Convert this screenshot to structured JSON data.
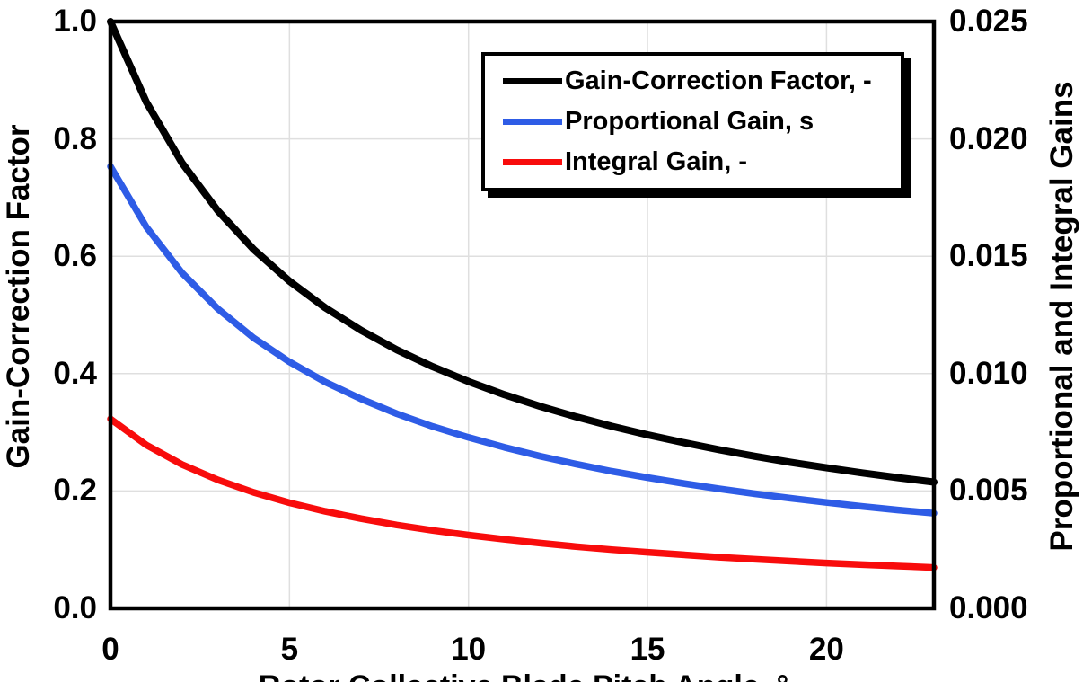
{
  "chart_data": {
    "type": "line",
    "title": "",
    "xlabel": "Rotor Collective Blade Pitch Angle, °",
    "ylabel_left": "Gain-Correction Factor",
    "ylabel_right": "Proportional and Integral Gains",
    "x_range": [
      0,
      23
    ],
    "y_left_range": [
      0.0,
      1.0
    ],
    "y_right_range": [
      0.0,
      0.025
    ],
    "grid": true,
    "grid_color": "#dfdfdf",
    "frame_color": "#000000",
    "x_ticks": [
      {
        "value": 0,
        "label": "0"
      },
      {
        "value": 5,
        "label": "5"
      },
      {
        "value": 10,
        "label": "10"
      },
      {
        "value": 15,
        "label": "15"
      },
      {
        "value": 20,
        "label": "20"
      }
    ],
    "y_left_ticks": [
      {
        "value": 1.0,
        "label": "1.0"
      },
      {
        "value": 0.8,
        "label": "0.8"
      },
      {
        "value": 0.6,
        "label": "0.6"
      },
      {
        "value": 0.4,
        "label": "0.4"
      },
      {
        "value": 0.2,
        "label": "0.2"
      },
      {
        "value": 0.0,
        "label": "0.0"
      }
    ],
    "y_right_ticks": [
      {
        "value": 0.025,
        "label": "0.025"
      },
      {
        "value": 0.02,
        "label": "0.020"
      },
      {
        "value": 0.015,
        "label": "0.015"
      },
      {
        "value": 0.01,
        "label": "0.010"
      },
      {
        "value": 0.005,
        "label": "0.005"
      },
      {
        "value": 0.0,
        "label": "0.000"
      }
    ],
    "legend": {
      "position": "top-right",
      "entries": [
        {
          "label": "Gain-Correction Factor, -",
          "color": "#000000"
        },
        {
          "label": "Proportional Gain, s",
          "color": "#2e5ce6"
        },
        {
          "label": "Integral Gain, -",
          "color": "#f80c0c"
        }
      ]
    },
    "x": [
      0,
      1,
      2,
      3,
      4,
      5,
      6,
      7,
      8,
      9,
      10,
      11,
      12,
      13,
      14,
      15,
      16,
      17,
      18,
      19,
      20,
      21,
      22,
      23
    ],
    "series": [
      {
        "name": "Gain-Correction Factor, -",
        "axis": "left",
        "color": "#000000",
        "width": 8,
        "values": [
          1.0,
          0.863,
          0.7591,
          0.6775,
          0.6117,
          0.5576,
          0.5123,
          0.4738,
          0.4405,
          0.4118,
          0.3866,
          0.3642,
          0.3443,
          0.3265,
          0.3103,
          0.2957,
          0.2825,
          0.2703,
          0.2591,
          0.2489,
          0.2395,
          0.2308,
          0.2227,
          0.2151
        ]
      },
      {
        "name": "Proportional Gain, s",
        "axis": "right",
        "color": "#2e5ce6",
        "width": 7.5,
        "values": [
          0.01883,
          0.01625,
          0.01429,
          0.01276,
          0.01152,
          0.0105,
          0.00964,
          0.00892,
          0.00829,
          0.00775,
          0.00728,
          0.00686,
          0.00648,
          0.00615,
          0.00584,
          0.00557,
          0.00532,
          0.00509,
          0.00488,
          0.00469,
          0.00451,
          0.00434,
          0.00419,
          0.00405
        ]
      },
      {
        "name": "Integral Gain, -",
        "axis": "right",
        "color": "#f80c0c",
        "width": 7.5,
        "values": [
          0.00807,
          0.00696,
          0.00613,
          0.00547,
          0.00494,
          0.0045,
          0.00413,
          0.00382,
          0.00355,
          0.00332,
          0.00312,
          0.00294,
          0.00278,
          0.00263,
          0.0025,
          0.00239,
          0.00228,
          0.00218,
          0.00209,
          0.00201,
          0.00193,
          0.00186,
          0.0018,
          0.00174
        ]
      }
    ]
  }
}
